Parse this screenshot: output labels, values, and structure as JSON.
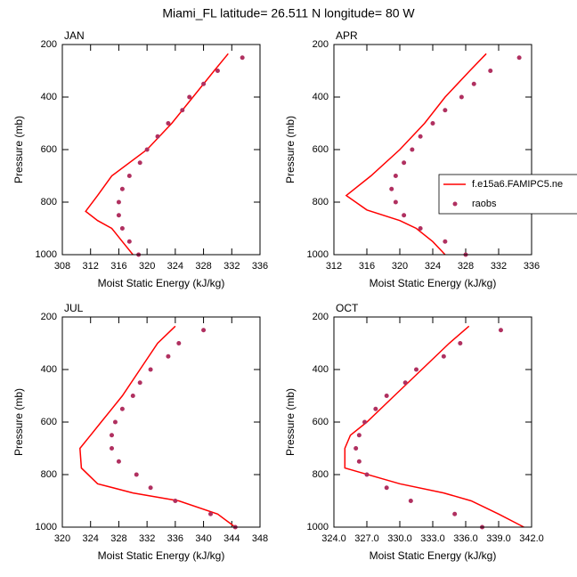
{
  "title": "Miami_FL  latitude= 26.511 N longitude= 80 W",
  "chart_data": [
    {
      "type": "line",
      "title": "JAN",
      "xlabel": "Moist Static Energy (kJ/kg)",
      "ylabel": "Pressure (mb)",
      "xlim": [
        308,
        336
      ],
      "xticks": [
        308,
        312,
        316,
        320,
        324,
        328,
        332,
        336
      ],
      "ylim": [
        1000,
        200
      ],
      "yticks": [
        200,
        400,
        600,
        800,
        1000
      ],
      "legend": false,
      "series": [
        {
          "style": "line",
          "color": "#ff0000",
          "x": [
            331.5,
            329.5,
            326.5,
            323.5,
            320,
            315,
            313,
            311.3,
            313,
            315,
            316.5,
            318
          ],
          "y": [
            235,
            300,
            400,
            500,
            600,
            700,
            775,
            835,
            870,
            900,
            950,
            1000
          ]
        },
        {
          "style": "markers",
          "color": "#b03060",
          "x": [
            333.5,
            330,
            328,
            326,
            325,
            323,
            321.5,
            320,
            319,
            317.5,
            316.5,
            316,
            316,
            316.5,
            317.5,
            318.8
          ],
          "y": [
            250,
            300,
            350,
            400,
            450,
            500,
            550,
            600,
            650,
            700,
            750,
            800,
            850,
            900,
            950,
            1000
          ]
        }
      ]
    },
    {
      "type": "line",
      "title": "APR",
      "xlabel": "Moist Static Energy (kJ/kg)",
      "ylabel": "Pressure (mb)",
      "xlim": [
        312,
        336
      ],
      "xticks": [
        312,
        316,
        320,
        324,
        328,
        332,
        336
      ],
      "ylim": [
        1000,
        200
      ],
      "yticks": [
        200,
        400,
        600,
        800,
        1000
      ],
      "legend": true,
      "series": [
        {
          "name": "f.e15a6.FAMIPC5.ne",
          "style": "line",
          "color": "#ff0000",
          "x": [
            330.5,
            328.5,
            325.5,
            323,
            320,
            316.5,
            313.5,
            316,
            320,
            322,
            324,
            325.5
          ],
          "y": [
            235,
            300,
            400,
            500,
            600,
            700,
            775,
            830,
            870,
            900,
            950,
            1000
          ]
        },
        {
          "name": "raobs",
          "style": "markers",
          "color": "#b03060",
          "x": [
            334.5,
            331,
            329,
            327.5,
            325.5,
            324,
            322.5,
            321.5,
            320.5,
            319.5,
            319,
            319.5,
            320.5,
            322.5,
            325.5,
            328
          ],
          "y": [
            250,
            300,
            350,
            400,
            450,
            500,
            550,
            600,
            650,
            700,
            750,
            800,
            850,
            900,
            950,
            1000
          ]
        }
      ]
    },
    {
      "type": "line",
      "title": "JUL",
      "xlabel": "Moist Static Energy (kJ/kg)",
      "ylabel": "Pressure (mb)",
      "xlim": [
        320,
        348
      ],
      "xticks": [
        320,
        324,
        328,
        332,
        336,
        340,
        344,
        348
      ],
      "ylim": [
        1000,
        200
      ],
      "yticks": [
        200,
        400,
        600,
        800,
        1000
      ],
      "legend": false,
      "series": [
        {
          "style": "line",
          "color": "#ff0000",
          "x": [
            336,
            333.5,
            331,
            328.5,
            327,
            325.5,
            324,
            322.5,
            322.7,
            325,
            330,
            336.5,
            342,
            344.5
          ],
          "y": [
            235,
            300,
            400,
            500,
            550,
            600,
            650,
            700,
            775,
            835,
            870,
            900,
            950,
            1000
          ]
        },
        {
          "style": "markers",
          "color": "#b03060",
          "x": [
            340,
            336.5,
            335,
            332.5,
            331,
            330,
            328.5,
            327.5,
            327,
            327,
            328,
            330.5,
            332.5,
            336,
            341,
            344.5
          ],
          "y": [
            250,
            300,
            350,
            400,
            450,
            500,
            550,
            600,
            650,
            700,
            750,
            800,
            850,
            900,
            950,
            1000
          ]
        }
      ]
    },
    {
      "type": "line",
      "title": "OCT",
      "xlabel": "Moist Static Energy (kJ/kg)",
      "ylabel": "Pressure (mb)",
      "xlim": [
        324,
        342
      ],
      "xticks": [
        {
          "value": 324,
          "label": "324.0"
        },
        {
          "value": 327,
          "label": "327.0"
        },
        {
          "value": 330,
          "label": "330.0"
        },
        {
          "value": 333,
          "label": "333.0"
        },
        {
          "value": 336,
          "label": "336.0"
        },
        {
          "value": 339,
          "label": "339.0"
        },
        {
          "value": 342,
          "label": "342.0"
        }
      ],
      "ylim": [
        1000,
        200
      ],
      "yticks": [
        200,
        400,
        600,
        800,
        1000
      ],
      "legend": false,
      "series": [
        {
          "style": "line",
          "color": "#ff0000",
          "x": [
            336.3,
            334.5,
            332,
            329.5,
            327,
            325.5,
            325,
            325,
            330,
            334,
            336.5,
            339,
            341.3
          ],
          "y": [
            235,
            300,
            400,
            500,
            600,
            650,
            700,
            775,
            835,
            870,
            900,
            950,
            1000
          ]
        },
        {
          "style": "markers",
          "color": "#b03060",
          "x": [
            339.2,
            335.5,
            334,
            331.5,
            330.5,
            328.8,
            327.8,
            326.8,
            326.3,
            326,
            326.3,
            327,
            328.8,
            331,
            335,
            337.5
          ],
          "y": [
            250,
            300,
            350,
            400,
            450,
            500,
            550,
            600,
            650,
            700,
            750,
            800,
            850,
            900,
            950,
            1000
          ]
        }
      ]
    }
  ]
}
